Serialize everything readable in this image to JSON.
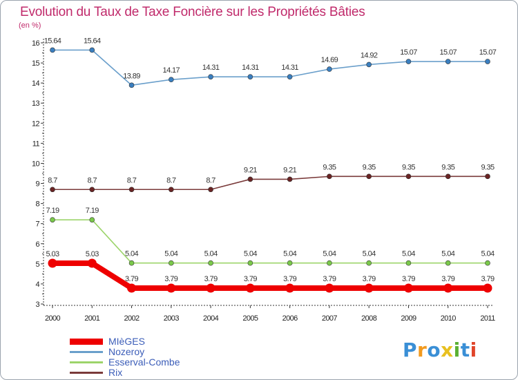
{
  "header": {
    "title": "Evolution du Taux de Taxe Foncière sur les Propriétés Bâties",
    "unit": "(en %)"
  },
  "brand": {
    "letters": [
      "P",
      "r",
      "o",
      "x",
      "i",
      "t",
      "i"
    ],
    "colors": [
      "#3a8fd6",
      "#f29a1f",
      "#3a8fd6",
      "#e8c020",
      "#5bb033",
      "#3a8fd6",
      "#e0452a"
    ]
  },
  "chart_data": {
    "type": "line",
    "title": "Evolution du Taux de Taxe Foncière sur les Propriétés Bâties",
    "ylabel": "(en %)",
    "xlabel": "",
    "x": [
      "2000",
      "2001",
      "2002",
      "2003",
      "2004",
      "2005",
      "2006",
      "2007",
      "2008",
      "2009",
      "2010",
      "2011"
    ],
    "ylim": [
      3,
      16
    ],
    "yticks": [
      "3",
      "4",
      "5",
      "6",
      "7",
      "8",
      "9",
      "10",
      "11",
      "12",
      "13",
      "14",
      "15",
      "16"
    ],
    "series": [
      {
        "name": "MIèGES",
        "color": "#ee0000",
        "thick": true,
        "values": [
          5.03,
          5.03,
          3.79,
          3.79,
          3.79,
          3.79,
          3.79,
          3.79,
          3.79,
          3.79,
          3.79,
          3.79
        ],
        "labels": [
          "5.03",
          "5.03",
          "3.79",
          "3.79",
          "3.79",
          "3.79",
          "3.79",
          "3.79",
          "3.79",
          "3.79",
          "3.79",
          "3.79"
        ]
      },
      {
        "name": "Nozeroy",
        "color": "#6a9fcb",
        "marker": "#3a7fc0",
        "values": [
          15.64,
          15.64,
          13.89,
          14.17,
          14.31,
          14.31,
          14.31,
          14.69,
          14.92,
          15.07,
          15.07,
          15.07
        ],
        "labels": [
          "15.64",
          "15.64",
          "13.89",
          "14.17",
          "14.31",
          "14.31",
          "14.31",
          "14.69",
          "14.92",
          "15.07",
          "15.07",
          "15.07"
        ]
      },
      {
        "name": "Esserval-Combe",
        "color": "#9cd46a",
        "marker": "#7ac94a",
        "values": [
          7.19,
          7.19,
          5.04,
          5.04,
          5.04,
          5.04,
          5.04,
          5.04,
          5.04,
          5.04,
          5.04,
          5.04
        ],
        "labels": [
          "7.19",
          "7.19",
          "5.04",
          "5.04",
          "5.04",
          "5.04",
          "5.04",
          "5.04",
          "5.04",
          "5.04",
          "5.04",
          "5.04"
        ]
      },
      {
        "name": "Rix",
        "color": "#7a3a3a",
        "marker": "#6a2424",
        "values": [
          8.7,
          8.7,
          8.7,
          8.7,
          8.7,
          9.21,
          9.21,
          9.35,
          9.35,
          9.35,
          9.35,
          9.35
        ],
        "labels": [
          "8.7",
          "8.7",
          "8.7",
          "8.7",
          "8.7",
          "9.21",
          "9.21",
          "9.35",
          "9.35",
          "9.35",
          "9.35",
          "9.35"
        ]
      }
    ],
    "legend_position": "bottom-left"
  }
}
